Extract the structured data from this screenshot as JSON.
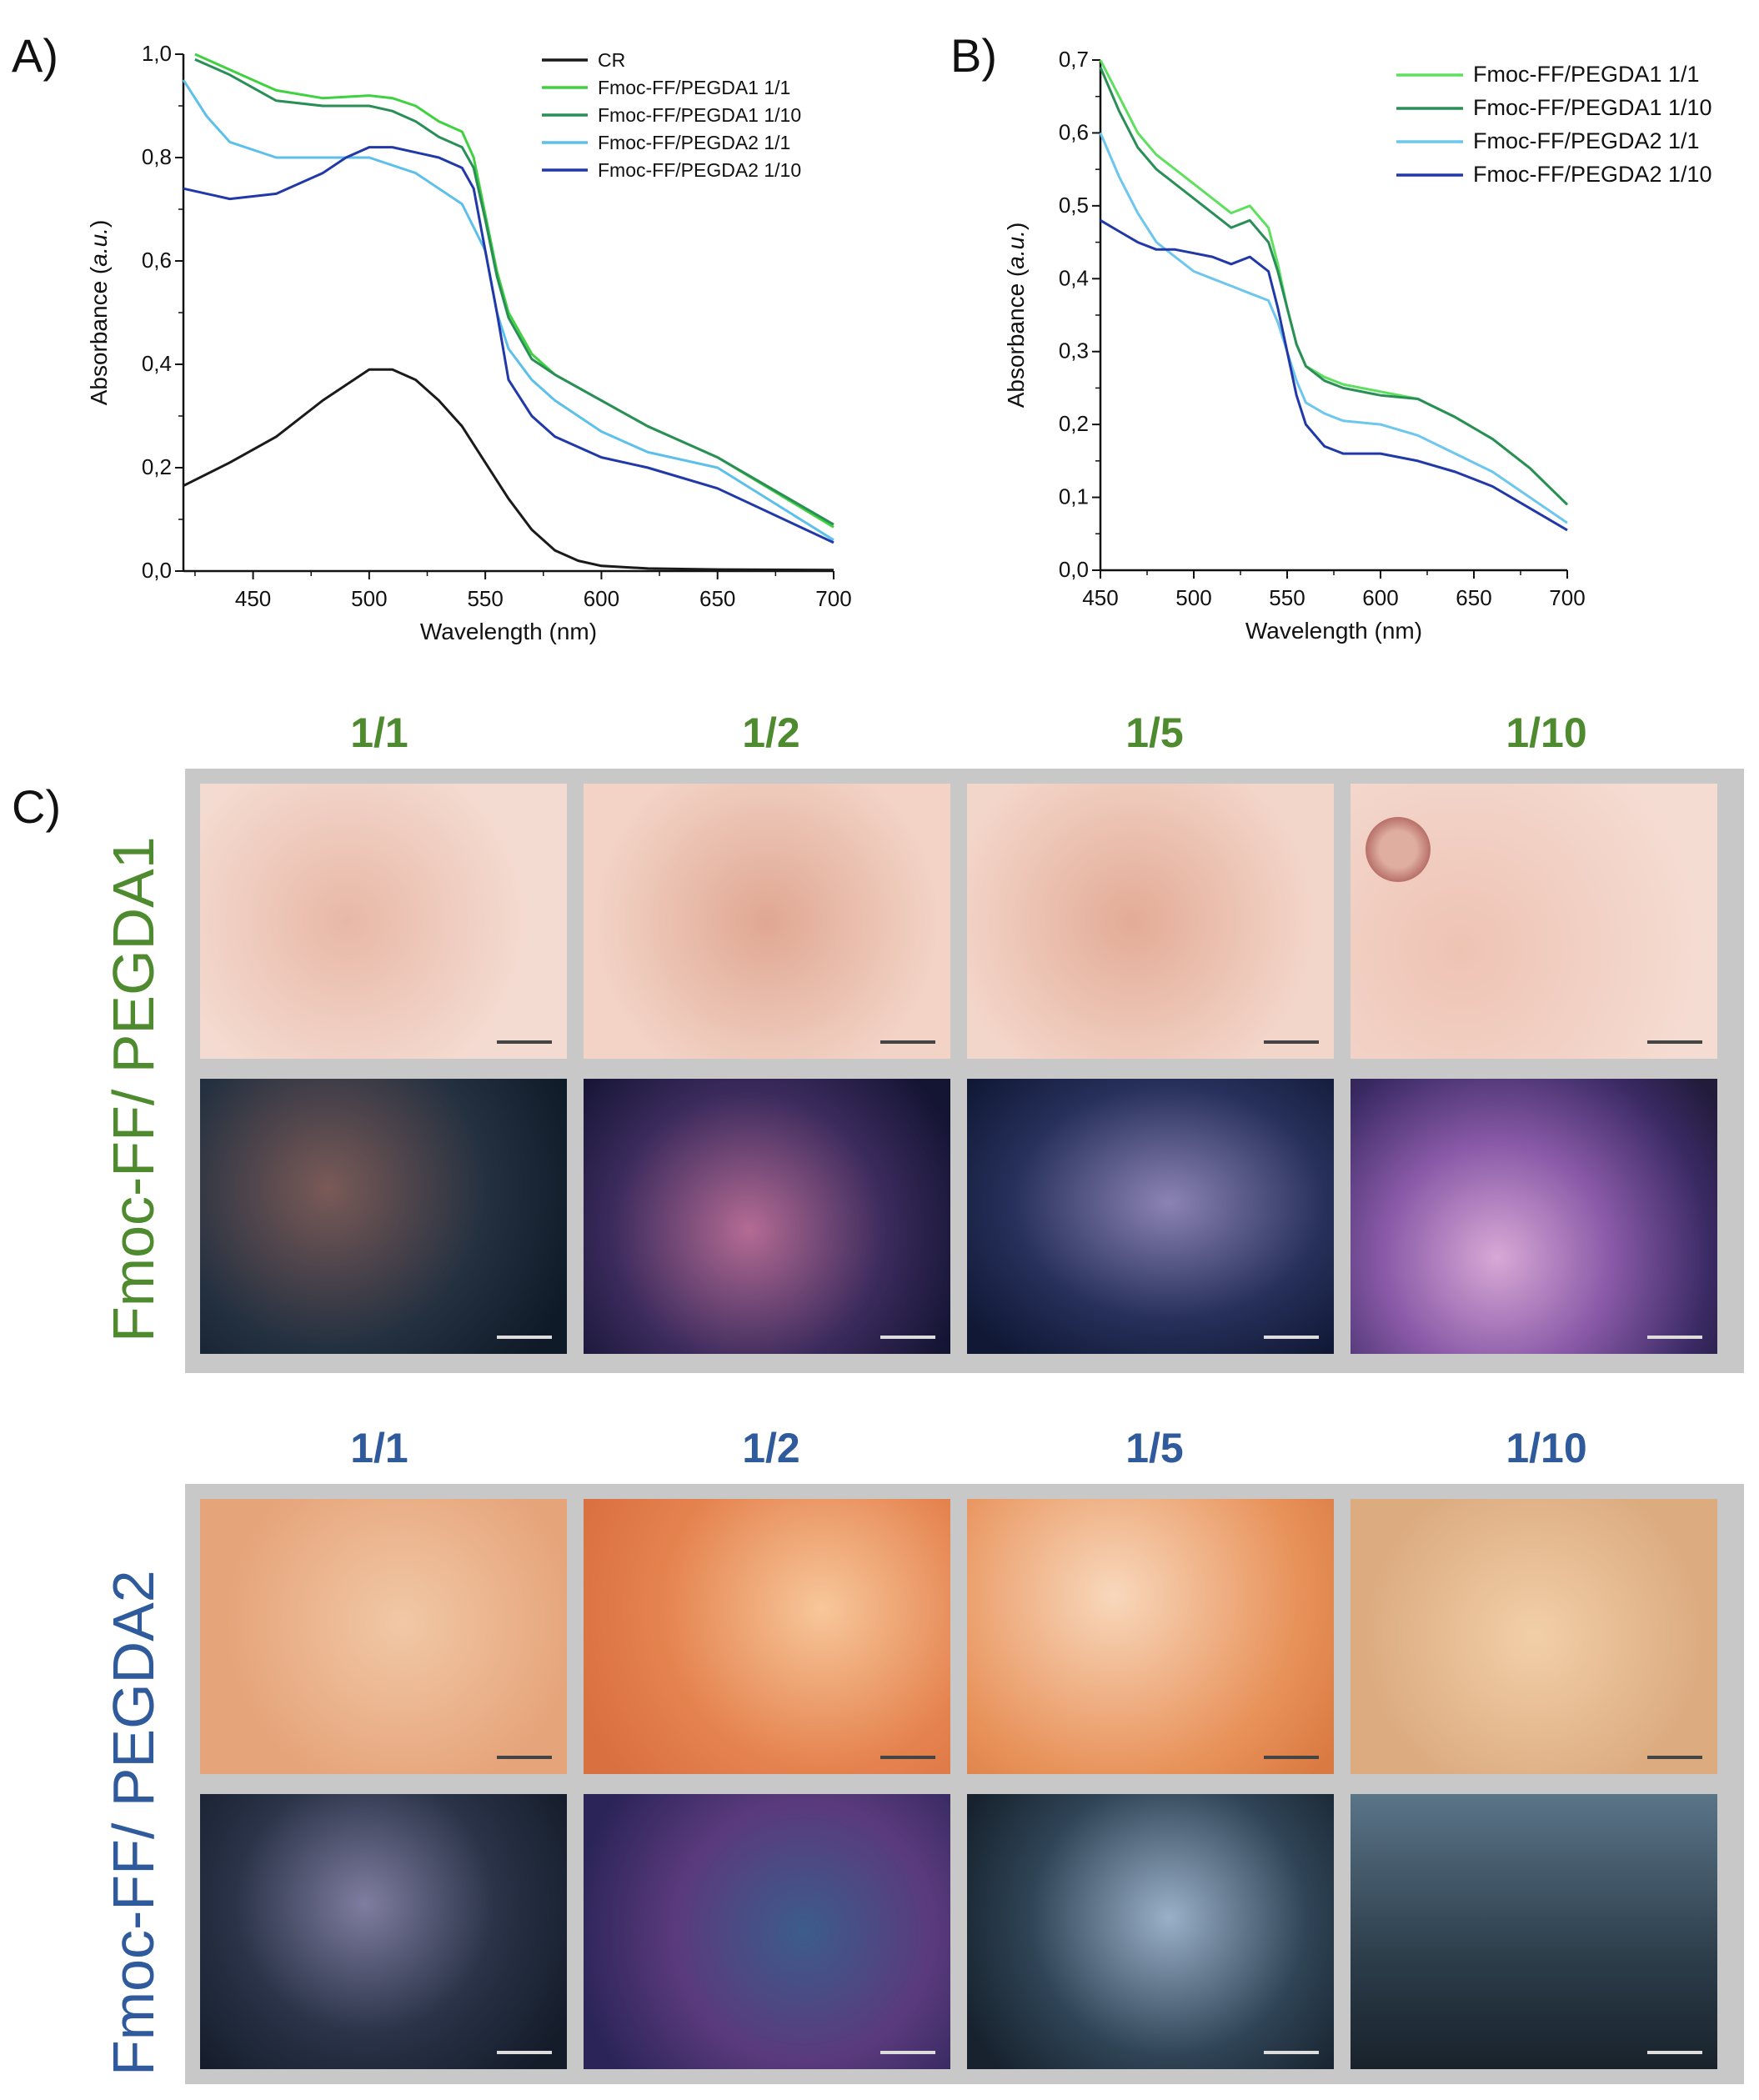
{
  "panels": {
    "a": "A)",
    "b": "B)",
    "c": "C)"
  },
  "chart_data": [
    {
      "type": "line",
      "xlabel": "Wavelength (nm)",
      "ylabel_main": "Absorbance (",
      "ylabel_italic": "a.u.",
      "ylabel_end": ")",
      "xlim": [
        420,
        700
      ],
      "ylim": [
        0,
        1.0
      ],
      "xticks": [
        "450",
        "500",
        "550",
        "600",
        "650",
        "700"
      ],
      "xtick_values": [
        450,
        500,
        550,
        600,
        650,
        700
      ],
      "yticks": [
        "0,0",
        "0,2",
        "0,4",
        "0,6",
        "0,8",
        "1,0"
      ],
      "ytick_values": [
        0,
        0.2,
        0.4,
        0.6,
        0.8,
        1.0
      ],
      "legend_position": "top-right",
      "series": [
        {
          "name": "CR",
          "color": "#1a1a1a",
          "x": [
            420,
            440,
            460,
            480,
            500,
            510,
            520,
            530,
            540,
            550,
            560,
            570,
            580,
            590,
            600,
            620,
            650,
            700
          ],
          "y": [
            0.165,
            0.21,
            0.26,
            0.33,
            0.39,
            0.39,
            0.37,
            0.33,
            0.28,
            0.21,
            0.14,
            0.08,
            0.04,
            0.02,
            0.01,
            0.005,
            0.003,
            0.002
          ]
        },
        {
          "name": "Fmoc-FF/PEGDA1 1/1",
          "color": "#3fd13f",
          "x": [
            425,
            440,
            460,
            480,
            500,
            510,
            520,
            530,
            540,
            545,
            550,
            555,
            560,
            570,
            580,
            600,
            620,
            650,
            700
          ],
          "y": [
            1.0,
            0.97,
            0.93,
            0.915,
            0.92,
            0.915,
            0.9,
            0.87,
            0.85,
            0.8,
            0.69,
            0.58,
            0.5,
            0.42,
            0.38,
            0.33,
            0.28,
            0.22,
            0.085
          ]
        },
        {
          "name": "Fmoc-FF/PEGDA1 1/10",
          "color": "#2a8f56",
          "x": [
            425,
            440,
            460,
            480,
            500,
            510,
            520,
            530,
            540,
            545,
            550,
            555,
            560,
            570,
            580,
            600,
            620,
            650,
            700
          ],
          "y": [
            0.99,
            0.96,
            0.91,
            0.9,
            0.9,
            0.89,
            0.87,
            0.84,
            0.82,
            0.78,
            0.68,
            0.57,
            0.49,
            0.41,
            0.38,
            0.33,
            0.28,
            0.22,
            0.09
          ]
        },
        {
          "name": "Fmoc-FF/PEGDA2 1/1",
          "color": "#5cc0ea",
          "x": [
            420,
            430,
            440,
            460,
            480,
            500,
            520,
            540,
            550,
            555,
            560,
            570,
            580,
            600,
            620,
            650,
            700
          ],
          "y": [
            0.95,
            0.88,
            0.83,
            0.8,
            0.8,
            0.8,
            0.77,
            0.71,
            0.62,
            0.5,
            0.43,
            0.37,
            0.33,
            0.27,
            0.23,
            0.2,
            0.06
          ]
        },
        {
          "name": "Fmoc-FF/PEGDA2 1/10",
          "color": "#2138a8",
          "x": [
            420,
            440,
            460,
            480,
            490,
            500,
            510,
            520,
            530,
            540,
            545,
            550,
            555,
            560,
            570,
            580,
            600,
            620,
            650,
            700
          ],
          "y": [
            0.74,
            0.72,
            0.73,
            0.77,
            0.8,
            0.82,
            0.82,
            0.81,
            0.8,
            0.78,
            0.74,
            0.62,
            0.5,
            0.37,
            0.3,
            0.26,
            0.22,
            0.2,
            0.16,
            0.055
          ]
        }
      ]
    },
    {
      "type": "line",
      "xlabel": "Wavelength (nm)",
      "ylabel_main": "Absorbance (",
      "ylabel_italic": "a.u.",
      "ylabel_end": ")",
      "xlim": [
        450,
        700
      ],
      "ylim": [
        0,
        0.7
      ],
      "xticks": [
        "450",
        "500",
        "550",
        "600",
        "650",
        "700"
      ],
      "xtick_values": [
        450,
        500,
        550,
        600,
        650,
        700
      ],
      "yticks": [
        "0,0",
        "0,1",
        "0,2",
        "0,3",
        "0,4",
        "0,5",
        "0,6",
        "0,7"
      ],
      "ytick_values": [
        0,
        0.1,
        0.2,
        0.3,
        0.4,
        0.5,
        0.6,
        0.7
      ],
      "legend_position": "top-right",
      "series": [
        {
          "name": "Fmoc-FF/PEGDA1 1/1",
          "color": "#5ee05e",
          "x": [
            450,
            460,
            470,
            480,
            490,
            500,
            510,
            520,
            530,
            540,
            545,
            550,
            555,
            560,
            570,
            580,
            600,
            620,
            640,
            660,
            680,
            700
          ],
          "y": [
            0.7,
            0.65,
            0.6,
            0.57,
            0.55,
            0.53,
            0.51,
            0.49,
            0.5,
            0.47,
            0.42,
            0.36,
            0.31,
            0.28,
            0.265,
            0.255,
            0.245,
            0.235,
            0.21,
            0.18,
            0.14,
            0.09
          ]
        },
        {
          "name": "Fmoc-FF/PEGDA1 1/10",
          "color": "#2a8f56",
          "x": [
            450,
            460,
            470,
            480,
            490,
            500,
            510,
            520,
            530,
            540,
            545,
            550,
            555,
            560,
            570,
            580,
            600,
            620,
            640,
            660,
            680,
            700
          ],
          "y": [
            0.69,
            0.63,
            0.58,
            0.55,
            0.53,
            0.51,
            0.49,
            0.47,
            0.48,
            0.45,
            0.41,
            0.36,
            0.31,
            0.28,
            0.26,
            0.25,
            0.24,
            0.235,
            0.21,
            0.18,
            0.14,
            0.09
          ]
        },
        {
          "name": "Fmoc-FF/PEGDA2 1/1",
          "color": "#6cc6ee",
          "x": [
            450,
            460,
            470,
            480,
            490,
            500,
            510,
            520,
            530,
            540,
            545,
            550,
            555,
            560,
            570,
            580,
            600,
            620,
            640,
            660,
            680,
            700
          ],
          "y": [
            0.6,
            0.54,
            0.49,
            0.45,
            0.43,
            0.41,
            0.4,
            0.39,
            0.38,
            0.37,
            0.34,
            0.3,
            0.26,
            0.23,
            0.215,
            0.205,
            0.2,
            0.185,
            0.16,
            0.135,
            0.1,
            0.065
          ]
        },
        {
          "name": "Fmoc-FF/PEGDA2 1/10",
          "color": "#2138a8",
          "x": [
            450,
            460,
            470,
            480,
            490,
            500,
            510,
            520,
            530,
            540,
            545,
            550,
            555,
            560,
            570,
            580,
            600,
            620,
            640,
            660,
            680,
            700
          ],
          "y": [
            0.48,
            0.465,
            0.45,
            0.44,
            0.44,
            0.435,
            0.43,
            0.42,
            0.43,
            0.41,
            0.36,
            0.3,
            0.24,
            0.2,
            0.17,
            0.16,
            0.16,
            0.15,
            0.135,
            0.115,
            0.085,
            0.055
          ]
        }
      ]
    }
  ],
  "micrographs": {
    "group1": {
      "label": "Fmoc-FF/ PEGDA1",
      "ratios": [
        "1/1",
        "1/2",
        "1/5",
        "1/10"
      ]
    },
    "group2": {
      "label": "Fmoc-FF/ PEGDA2",
      "ratios": [
        "1/1",
        "1/2",
        "1/5",
        "1/10"
      ]
    }
  }
}
